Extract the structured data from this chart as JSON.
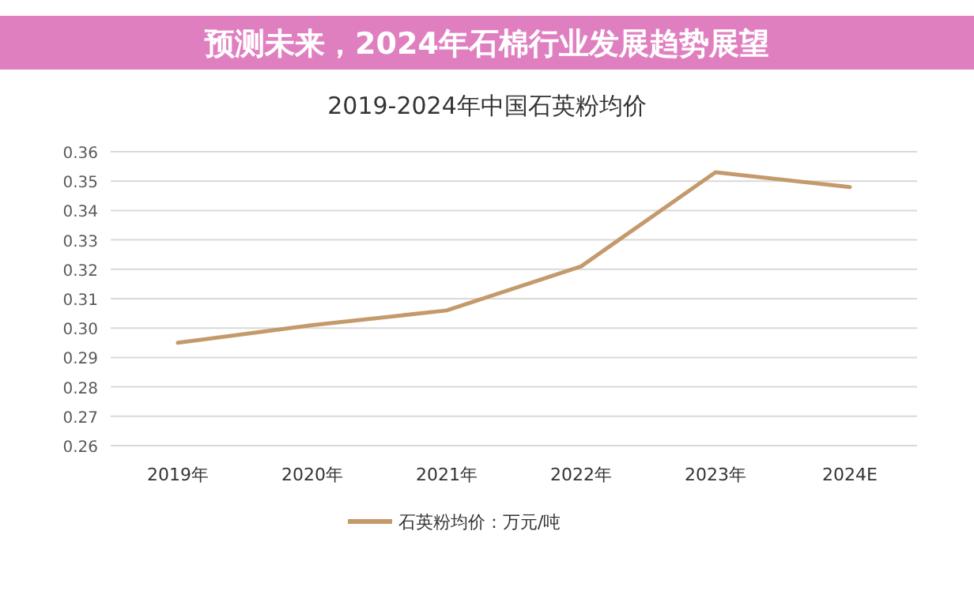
{
  "chart_data": {
    "type": "line",
    "title": "2019-2024年中国石英粉均价",
    "annotations": [
      "预测未来，2024年石棉行业发展趋势展望"
    ],
    "categories": [
      "2019年",
      "2020年",
      "2021年",
      "2022年",
      "2023年",
      "2024E"
    ],
    "series": [
      {
        "name": "石英粉均价：万元/吨",
        "color": "#c49a6c",
        "values": [
          0.295,
          0.301,
          0.306,
          0.321,
          0.353,
          0.348
        ]
      }
    ],
    "ylim": [
      0.26,
      0.36
    ],
    "yticks": [
      {
        "value": 0.26,
        "label": "0.26"
      },
      {
        "value": 0.27,
        "label": "0.27"
      },
      {
        "value": 0.28,
        "label": "0.28"
      },
      {
        "value": 0.29,
        "label": "0.29"
      },
      {
        "value": 0.3,
        "label": "0.30"
      },
      {
        "value": 0.31,
        "label": "0.31"
      },
      {
        "value": 0.32,
        "label": "0.32"
      },
      {
        "value": 0.33,
        "label": "0.33"
      },
      {
        "value": 0.34,
        "label": "0.34"
      },
      {
        "value": 0.35,
        "label": "0.35"
      },
      {
        "value": 0.36,
        "label": "0.36"
      }
    ],
    "grid": "y",
    "legend": "bottom",
    "marker": "none",
    "line_style": "solid"
  }
}
